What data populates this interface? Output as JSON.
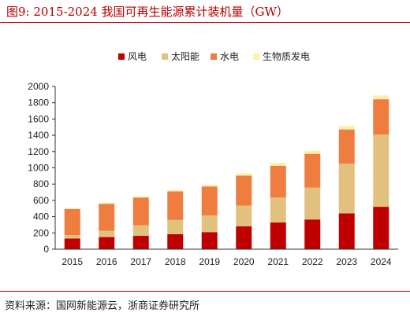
{
  "figure": {
    "title": "图9:   2015-2024 我国可再生能源累计装机量（GW）",
    "source": "资料来源：国网新能源云，浙商证券研究所"
  },
  "chart_data": {
    "type": "bar",
    "stacked": true,
    "title": "图9:   2015-2024 我国可再生能源累计装机量（GW）",
    "categories": [
      "2015",
      "2016",
      "2017",
      "2018",
      "2019",
      "2020",
      "2021",
      "2022",
      "2023",
      "2024"
    ],
    "series": [
      {
        "name": "风电",
        "color": "#c00000",
        "values": [
          131,
          149,
          164,
          184,
          210,
          282,
          328,
          365,
          441,
          521
        ]
      },
      {
        "name": "太阳能",
        "color": "#e2c07d",
        "values": [
          43,
          77,
          130,
          175,
          205,
          253,
          306,
          393,
          609,
          887
        ]
      },
      {
        "name": "水电",
        "color": "#ee7d3f",
        "values": [
          320,
          332,
          341,
          352,
          356,
          370,
          391,
          414,
          422,
          436
        ]
      },
      {
        "name": "生物质发电",
        "color": "#fff2a8",
        "values": [
          10,
          12,
          15,
          18,
          22,
          30,
          38,
          41,
          44,
          46
        ]
      }
    ],
    "ylim": [
      0,
      2000
    ],
    "yticks": [
      0,
      200,
      400,
      600,
      800,
      1000,
      1200,
      1400,
      1600,
      1800,
      2000
    ],
    "xlabel": "",
    "ylabel": "",
    "legend_position": "top",
    "grid": false
  }
}
